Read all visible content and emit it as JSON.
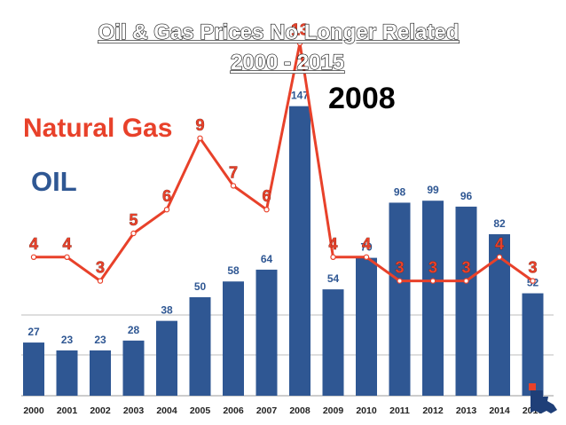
{
  "colors": {
    "oil_bar": "#2f5793",
    "gas_line": "#e8412a",
    "background": "#ffffff",
    "grid": "#bdbdbd"
  },
  "chart_data": {
    "type": "bar",
    "title_line1": "Oil & Gas Prices No Longer Related",
    "title_line2": "2000 - 2015",
    "annotation": "2008",
    "legend": [
      "Natural Gas",
      "OIL"
    ],
    "categories": [
      "2000",
      "2001",
      "2002",
      "2003",
      "2004",
      "2005",
      "2006",
      "2007",
      "2008",
      "2009",
      "2010",
      "2011",
      "2012",
      "2013",
      "2014",
      "2015"
    ],
    "series": [
      {
        "name": "OIL",
        "type": "bar",
        "values": [
          27,
          23,
          23,
          28,
          38,
          50,
          58,
          64,
          147,
          54,
          70,
          98,
          99,
          96,
          82,
          52
        ],
        "labels": [
          "27",
          "23",
          "23",
          "28",
          "38",
          "50",
          "58",
          "64",
          "147",
          "54",
          "70",
          "98",
          "99",
          "96",
          "82",
          "52"
        ]
      },
      {
        "name": "Natural Gas",
        "type": "line",
        "values": [
          4,
          4,
          3,
          5,
          6,
          9,
          7,
          6,
          13,
          4,
          4,
          3,
          3,
          3,
          4,
          3
        ],
        "labels": [
          "4",
          "4",
          "3",
          "5",
          "6",
          "9",
          "7",
          "6",
          "13",
          "4",
          "4",
          "3",
          "3",
          "3",
          "4",
          "3"
        ]
      }
    ],
    "grid": true,
    "legend_placement": "top-left"
  }
}
